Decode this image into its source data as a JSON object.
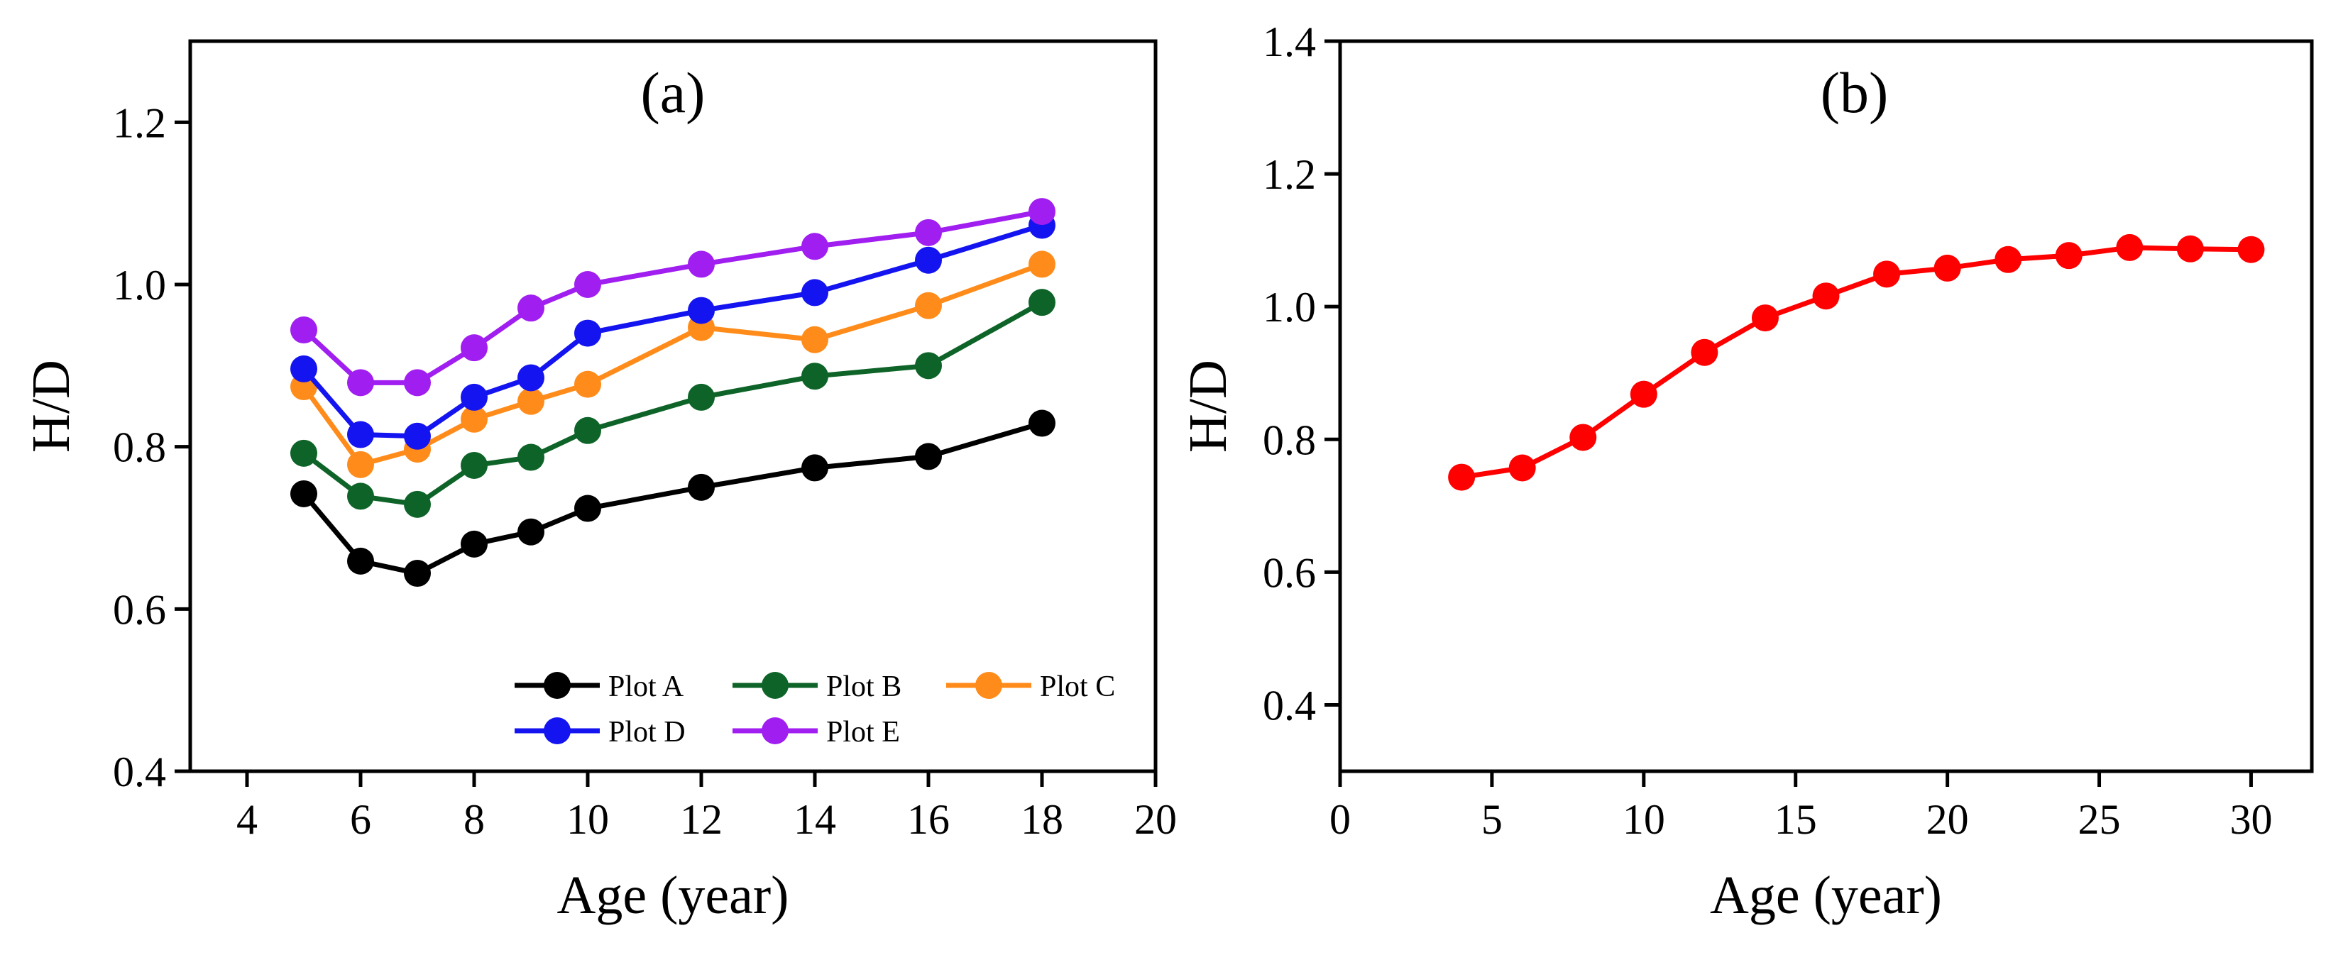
{
  "chart_data": [
    {
      "type": "line",
      "panel_label": "(a)",
      "xlabel": "Age (year)",
      "ylabel": "H/D",
      "xlim": [
        3,
        20
      ],
      "ylim": [
        0.4,
        1.3
      ],
      "xticks": [
        4,
        6,
        8,
        10,
        12,
        14,
        16,
        18,
        20
      ],
      "xtick_labels": [
        "4",
        "6",
        "8",
        "10",
        "12",
        "14",
        "16",
        "18",
        "20"
      ],
      "yticks": [
        0.4,
        0.6,
        0.8,
        1.0,
        1.2
      ],
      "ytick_labels": [
        "0.4",
        "0.6",
        "0.8",
        "1.0",
        "1.2"
      ],
      "legend_position": "bottom-right",
      "x": [
        5,
        6,
        7,
        8,
        9,
        10,
        12,
        14,
        16,
        18
      ],
      "series": [
        {
          "name": "Plot A",
          "color": "#000000",
          "values": [
            0.742,
            0.659,
            0.644,
            0.68,
            0.695,
            0.724,
            0.75,
            0.774,
            0.788,
            0.829
          ]
        },
        {
          "name": "Plot B",
          "color": "#0e6428",
          "values": [
            0.792,
            0.739,
            0.729,
            0.777,
            0.787,
            0.82,
            0.861,
            0.887,
            0.9,
            0.978
          ]
        },
        {
          "name": "Plot C",
          "color": "#ff8c1a",
          "values": [
            0.874,
            0.778,
            0.797,
            0.834,
            0.856,
            0.877,
            0.947,
            0.932,
            0.974,
            1.025
          ]
        },
        {
          "name": "Plot D",
          "color": "#1414f0",
          "values": [
            0.896,
            0.815,
            0.813,
            0.861,
            0.885,
            0.94,
            0.968,
            0.99,
            1.03,
            1.073
          ]
        },
        {
          "name": "Plot E",
          "color": "#a01ef0",
          "values": [
            0.944,
            0.879,
            0.879,
            0.922,
            0.971,
            1.0,
            1.025,
            1.047,
            1.064,
            1.09
          ]
        }
      ]
    },
    {
      "type": "line",
      "panel_label": "(b)",
      "xlabel": "Age (year)",
      "ylabel": "H/D",
      "xlim": [
        0,
        32
      ],
      "ylim": [
        0.3,
        1.4
      ],
      "xticks": [
        0,
        5,
        10,
        15,
        20,
        25,
        30
      ],
      "xtick_labels": [
        "0",
        "5",
        "10",
        "15",
        "20",
        "25",
        "30"
      ],
      "yticks": [
        0.4,
        0.6,
        0.8,
        1.0,
        1.2,
        1.4
      ],
      "ytick_labels": [
        "0.4",
        "0.6",
        "0.8",
        "1.0",
        "1.2",
        "1.4"
      ],
      "x": [
        4,
        6,
        8,
        10,
        12,
        14,
        16,
        18,
        20,
        22,
        24,
        26,
        28,
        30
      ],
      "series": [
        {
          "name": "H/D",
          "color": "#ff0000",
          "values": [
            0.743,
            0.757,
            0.803,
            0.868,
            0.931,
            0.983,
            1.016,
            1.049,
            1.058,
            1.071,
            1.077,
            1.089,
            1.087,
            1.086
          ]
        }
      ]
    }
  ]
}
